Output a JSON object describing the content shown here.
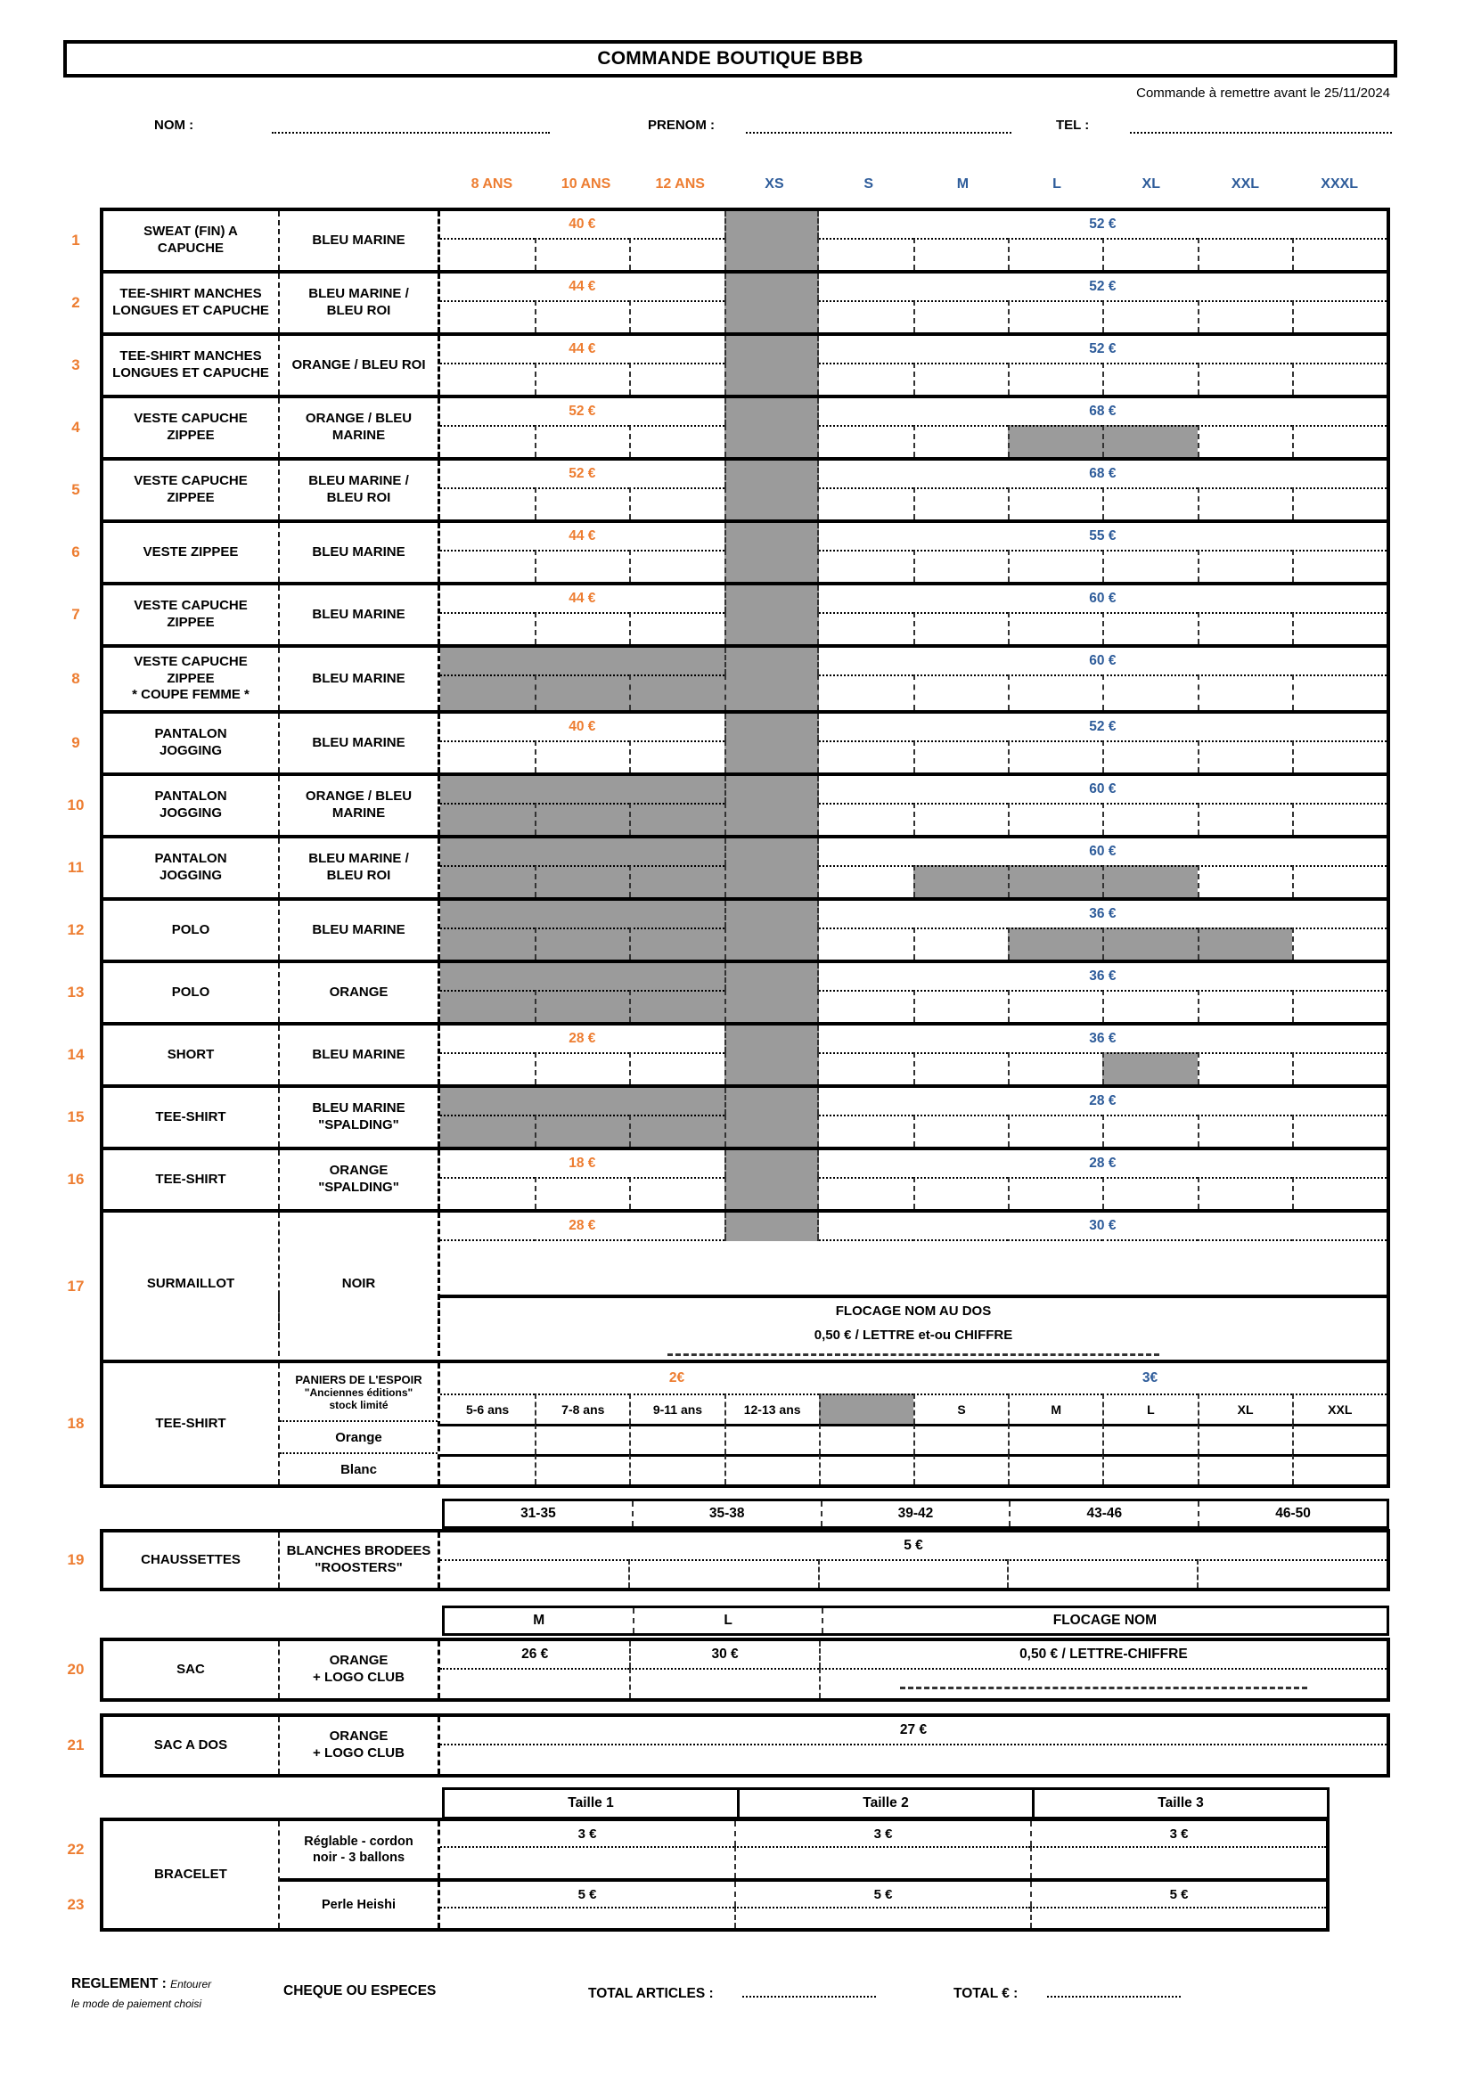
{
  "header": {
    "title": "COMMANDE BOUTIQUE BBB",
    "deadline": "Commande à remettre avant le 25/11/2024",
    "fields": [
      {
        "label": "NOM :"
      },
      {
        "label": "PRENOM :"
      },
      {
        "label": "TEL :"
      }
    ]
  },
  "colors": {
    "orange": "#ED7D31",
    "blue": "#2E5C9A",
    "gray": "#9B9B9B"
  },
  "size_headers": {
    "kids": [
      "8 ANS",
      "10 ANS",
      "12 ANS"
    ],
    "xs": "XS",
    "adult": [
      "S",
      "M",
      "L",
      "XL",
      "XXL",
      "XXXL"
    ]
  },
  "rows": [
    {
      "num": "1",
      "item": "SWEAT (FIN) A\nCAPUCHE",
      "color": "BLEU MARINE",
      "kids_price": "40 €",
      "adult_price": "52 €",
      "kids_gray": false,
      "gray_inputs": []
    },
    {
      "num": "2",
      "item": "TEE-SHIRT MANCHES\nLONGUES ET CAPUCHE",
      "color": "BLEU MARINE /\nBLEU ROI",
      "kids_price": "44 €",
      "adult_price": "52 €",
      "kids_gray": false,
      "gray_inputs": []
    },
    {
      "num": "3",
      "item": "TEE-SHIRT MANCHES\nLONGUES ET CAPUCHE",
      "color": "ORANGE / BLEU ROI",
      "kids_price": "44 €",
      "adult_price": "52 €",
      "kids_gray": false,
      "gray_inputs": []
    },
    {
      "num": "4",
      "item": "VESTE CAPUCHE\nZIPPEE",
      "color": "ORANGE / BLEU\nMARINE",
      "kids_price": "52 €",
      "adult_price": "68 €",
      "kids_gray": false,
      "gray_inputs": [
        "L",
        "XL"
      ]
    },
    {
      "num": "5",
      "item": "VESTE CAPUCHE\nZIPPEE",
      "color": "BLEU MARINE /\nBLEU ROI",
      "kids_price": "52 €",
      "adult_price": "68 €",
      "kids_gray": false,
      "gray_inputs": []
    },
    {
      "num": "6",
      "item": "VESTE ZIPPEE",
      "color": "BLEU MARINE",
      "kids_price": "44 €",
      "adult_price": "55 €",
      "kids_gray": false,
      "gray_inputs": []
    },
    {
      "num": "7",
      "item": "VESTE CAPUCHE\nZIPPEE",
      "color": "BLEU MARINE",
      "kids_price": "44 €",
      "adult_price": "60 €",
      "kids_gray": false,
      "gray_inputs": []
    },
    {
      "num": "8",
      "item": "VESTE CAPUCHE\nZIPPEE\n* COUPE FEMME *",
      "color": "BLEU MARINE",
      "kids_price": "",
      "adult_price": "60 €",
      "kids_gray": true,
      "gray_inputs": []
    },
    {
      "num": "9",
      "item": "PANTALON\nJOGGING",
      "color": "BLEU MARINE",
      "kids_price": "40 €",
      "adult_price": "52 €",
      "kids_gray": false,
      "gray_inputs": []
    },
    {
      "num": "10",
      "item": "PANTALON\nJOGGING",
      "color": "ORANGE / BLEU\nMARINE",
      "kids_price": "",
      "adult_price": "60 €",
      "kids_gray": true,
      "gray_inputs": []
    },
    {
      "num": "11",
      "item": "PANTALON\nJOGGING",
      "color": "BLEU MARINE /\nBLEU ROI",
      "kids_price": "",
      "adult_price": "60 €",
      "kids_gray": true,
      "gray_inputs": [
        "M",
        "L",
        "XL"
      ]
    },
    {
      "num": "12",
      "item": "POLO",
      "color": "BLEU MARINE",
      "kids_price": "",
      "adult_price": "36 €",
      "kids_gray": true,
      "gray_inputs": [
        "L",
        "XL",
        "XXL"
      ]
    },
    {
      "num": "13",
      "item": "POLO",
      "color": "ORANGE",
      "kids_price": "",
      "adult_price": "36 €",
      "kids_gray": true,
      "gray_inputs": []
    },
    {
      "num": "14",
      "item": "SHORT",
      "color": "BLEU MARINE",
      "kids_price": "28 €",
      "adult_price": "36 €",
      "kids_gray": false,
      "gray_inputs": [
        "XL"
      ]
    },
    {
      "num": "15",
      "item": "TEE-SHIRT",
      "color": "BLEU MARINE\n\"SPALDING\"",
      "kids_price": "",
      "adult_price": "28 €",
      "kids_gray": true,
      "gray_inputs": []
    },
    {
      "num": "16",
      "item": "TEE-SHIRT",
      "color": "ORANGE\n\"SPALDING\"",
      "kids_price": "18 €",
      "adult_price": "28 €",
      "kids_gray": false,
      "gray_inputs": []
    }
  ],
  "surmaillot": {
    "num": "17",
    "item": "SURMAILLOT",
    "color": "NOIR",
    "kids_price": "28 €",
    "adult_price": "30 €",
    "flocage_line1": "FLOCAGE NOM AU DOS",
    "flocage_line2": "0,50 € / LETTRE et-ou CHIFFRE"
  },
  "paniers": {
    "num": "18",
    "item": "TEE-SHIRT",
    "header_line1": "PANIERS DE L'ESPOIR",
    "header_line2": "\"Anciennes éditions\"",
    "header_line3": "stock limité",
    "variants": [
      "Orange",
      "Blanc"
    ],
    "kids_price": "2€",
    "adult_price": "3€",
    "sizes": [
      "5-6 ans",
      "7-8 ans",
      "9-11 ans",
      "12-13 ans",
      "",
      "S",
      "M",
      "L",
      "XL",
      "XXL"
    ]
  },
  "chaussettes": {
    "num": "19",
    "item": "CHAUSSETTES",
    "color": "BLANCHES BRODEES\n\"ROOSTERS\"",
    "sizes": [
      "31-35",
      "35-38",
      "39-42",
      "43-46",
      "46-50"
    ],
    "price": "5 €"
  },
  "sac": {
    "num": "20",
    "item": "SAC",
    "color": "ORANGE\n+ LOGO CLUB",
    "headers": [
      "M",
      "L",
      "FLOCAGE NOM"
    ],
    "prices": [
      "26 €",
      "30 €",
      "0,50 € / LETTRE-CHIFFRE"
    ]
  },
  "sac_a_dos": {
    "num": "21",
    "item": "SAC A DOS",
    "color": "ORANGE\n+ LOGO CLUB",
    "price": "27 €"
  },
  "bracelet": {
    "item": "BRACELET",
    "headers": [
      "Taille 1",
      "Taille 2",
      "Taille 3"
    ],
    "rows": [
      {
        "num": "22",
        "label": "Réglable - cordon\nnoir - 3 ballons",
        "prices": [
          "3 €",
          "3 €",
          "3 €"
        ]
      },
      {
        "num": "23",
        "label": "Perle Heishi",
        "prices": [
          "5 €",
          "5 €",
          "5 €"
        ]
      }
    ]
  },
  "footer": {
    "reglement_label": "REGLEMENT :",
    "reglement_note1": "Entourer",
    "reglement_note2": "le mode de paiement choisi",
    "payment": "CHEQUE OU ESPECES",
    "total_articles_label": "TOTAL ARTICLES :",
    "total_label": "TOTAL  € :"
  }
}
